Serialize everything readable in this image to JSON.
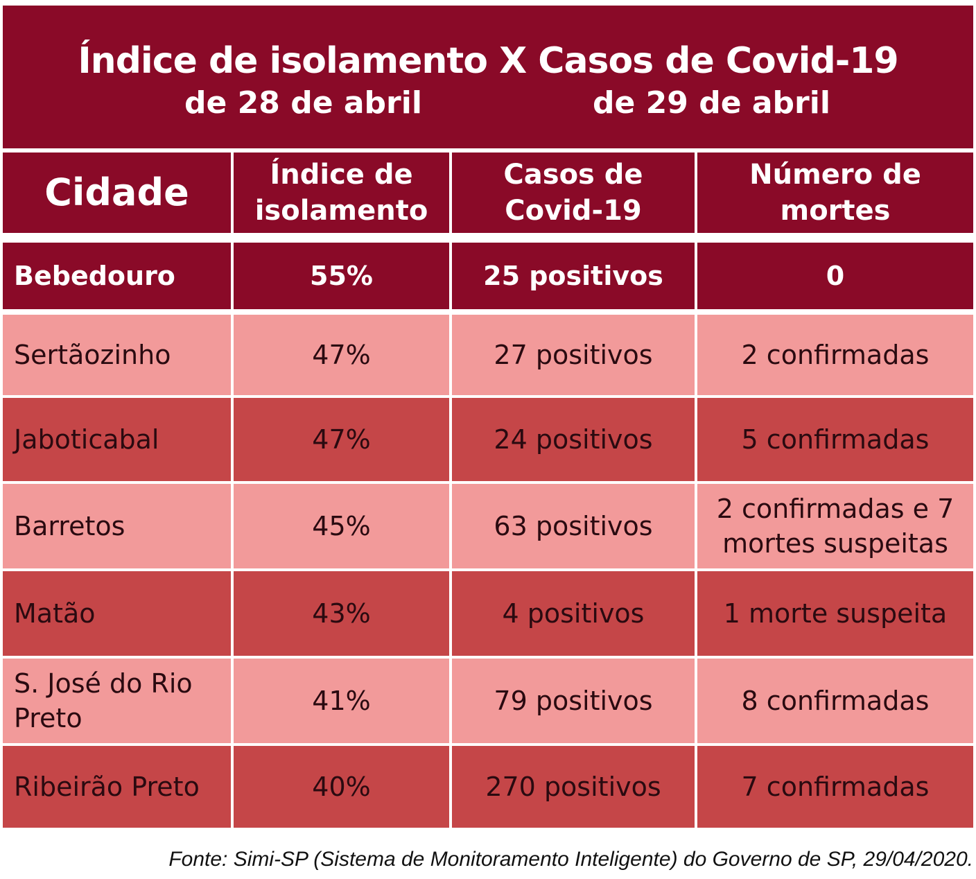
{
  "chart_data": {
    "type": "table",
    "title": "Índice de isolamento X Casos de Covid-19",
    "subtitle_left": "de 28 de abril",
    "subtitle_right": "de 29 de abril",
    "columns": [
      "Cidade",
      "Índice de isolamento",
      "Casos de Covid-19",
      "Número de mortes"
    ],
    "rows": [
      {
        "city": "Bebedouro",
        "isolation": "55%",
        "cases": "25 positivos",
        "deaths": "0",
        "highlight": true
      },
      {
        "city": "Sertãozinho",
        "isolation": "47%",
        "cases": "27 positivos",
        "deaths": "2 confirmadas"
      },
      {
        "city": "Jaboticabal",
        "isolation": "47%",
        "cases": "24 positivos",
        "deaths": "5 confirmadas"
      },
      {
        "city": "Barretos",
        "isolation": "45%",
        "cases": "63 positivos",
        "deaths": "2 confirmadas e 7 mortes suspeitas"
      },
      {
        "city": "Matão",
        "isolation": "43%",
        "cases": "4 positivos",
        "deaths": "1 morte suspeita"
      },
      {
        "city": "S. José do Rio Preto",
        "isolation": "41%",
        "cases": "79 positivos",
        "deaths": "8 confirmadas"
      },
      {
        "city": "Ribeirão Preto",
        "isolation": "40%",
        "cases": "270 positivos",
        "deaths": "7 confirmadas"
      }
    ],
    "colors": {
      "dark": "#8a0a28",
      "light_row": "#f29a9a",
      "medium_row": "#c54648"
    }
  },
  "source": "Fonte: Simi-SP (Sistema de Monitoramento Inteligente) do Governo de SP, 29/04/2020."
}
